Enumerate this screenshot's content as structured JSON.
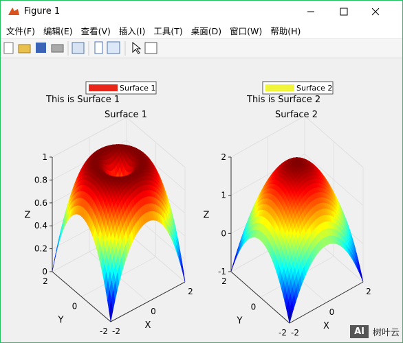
{
  "window": {
    "title": "Figure 1"
  },
  "menu": [
    "文件(F)",
    "编辑(E)",
    "查看(V)",
    "插入(I)",
    "工具(T)",
    "桌面(D)",
    "窗口(W)",
    "帮助(H)"
  ],
  "watermark": {
    "badge": "AI",
    "text": "树叶云"
  },
  "chart_data": [
    {
      "type": "surface",
      "title": "Surface 1",
      "annotation": "This is Surface 1",
      "series": [
        {
          "name": "Surface 1",
          "color": "#e8261a"
        }
      ],
      "xlabel": "X",
      "ylabel": "Y",
      "zlabel": "Z",
      "xlim": [
        -2,
        2
      ],
      "ylim": [
        -2,
        2
      ],
      "zlim": [
        0,
        1
      ],
      "xticks": [
        -2,
        0,
        2
      ],
      "yticks": [
        -2,
        0,
        2
      ],
      "zticks": [
        0,
        0.2,
        0.4,
        0.6,
        0.8,
        1
      ]
    },
    {
      "type": "surface",
      "title": "Surface 2",
      "annotation": "This is Surface 2",
      "series": [
        {
          "name": "Surface 2",
          "color": "#f0f53a"
        }
      ],
      "xlabel": "X",
      "ylabel": "Y",
      "zlabel": "Z",
      "xlim": [
        -2,
        2
      ],
      "ylim": [
        -2,
        2
      ],
      "zlim": [
        -1,
        2
      ],
      "xticks": [
        -2,
        0,
        2
      ],
      "yticks": [
        -2,
        0,
        2
      ],
      "zticks": [
        -1,
        0,
        1,
        2
      ]
    }
  ]
}
